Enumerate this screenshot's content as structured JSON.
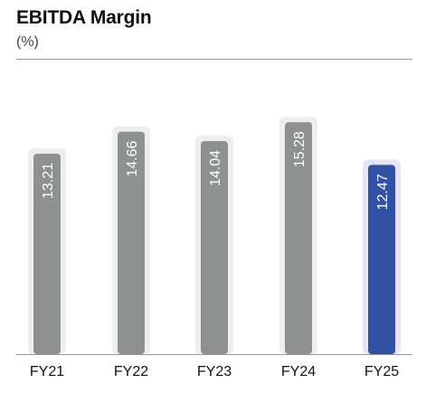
{
  "header": {
    "title": "EBITDA Margin",
    "subtitle": "(%)"
  },
  "colors": {
    "default_bar": "#8f9090",
    "highlight_bar": "#3450a4",
    "default_glow": "#eeeeee",
    "highlight_glow": "#e4e6f2",
    "baseline": "#9a9a9a"
  },
  "chart_data": {
    "type": "bar",
    "title": "EBITDA Margin",
    "subtitle": "(%)",
    "categories": [
      "FY21",
      "FY22",
      "FY23",
      "FY24",
      "FY25"
    ],
    "values": [
      13.21,
      14.66,
      14.04,
      15.28,
      12.47
    ],
    "value_labels": [
      "13.21",
      "14.66",
      "14.04",
      "15.28",
      "12.47"
    ],
    "highlight_index": 4,
    "ylim": [
      0,
      16
    ],
    "grid": false,
    "legend": "none"
  }
}
